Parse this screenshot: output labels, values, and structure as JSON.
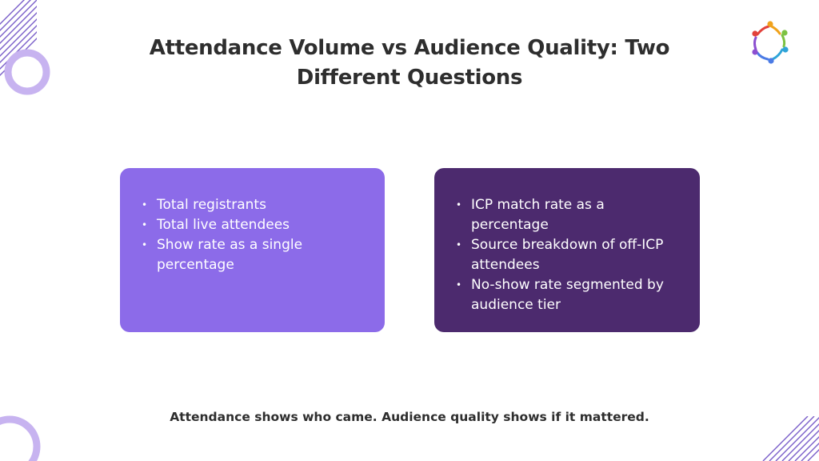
{
  "title": "Attendance Volume vs Audience Quality: Two Different Questions",
  "left_card": {
    "items": [
      "Total registrants",
      "Total live attendees",
      "Show rate as a single percentage"
    ],
    "color": "#8c6be9"
  },
  "right_card": {
    "items": [
      "ICP match rate as a percentage",
      "Source breakdown of off-ICP attendees",
      "No-show rate segmented by audience tier"
    ],
    "color": "#4c2a6e"
  },
  "caption": "Attendance shows who came. Audience quality shows if it mattered.",
  "icons": {
    "logo": "people-circle-logo-icon",
    "decoration": "purple-ring-and-stripes"
  },
  "colors": {
    "accent": "#8c6be9",
    "dark": "#4c2a6e",
    "ring": "#c7b3f0"
  }
}
